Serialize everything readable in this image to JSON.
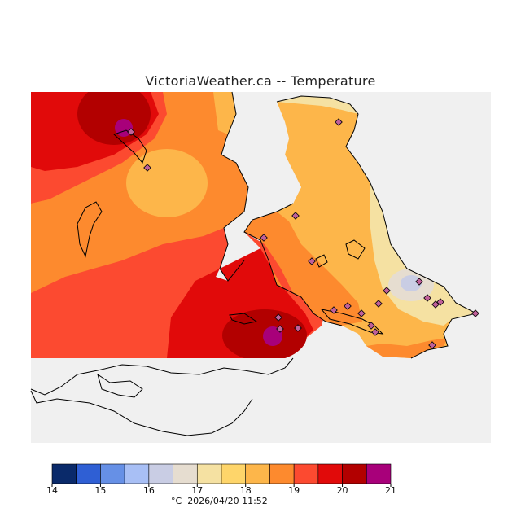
{
  "title": "VictoriaWeather.ca -- Temperature",
  "map": {
    "base_color": "#f0f0f0",
    "coastline_color": "#000000",
    "station_marker_color": "#c0609a"
  },
  "legend": {
    "unit": "°C",
    "timestamp": "2026/04/20 11:52",
    "ticks": [
      "14",
      "15",
      "16",
      "17",
      "18",
      "19",
      "20",
      "21"
    ],
    "colors": [
      "#0a2a6a",
      "#2f5fd4",
      "#6690e6",
      "#a8bff5",
      "#c9cde4",
      "#e6ddd0",
      "#f5e1a2",
      "#fed56a",
      "#fdb64a",
      "#fd8a2e",
      "#fc4a30",
      "#e10a0a",
      "#b20000",
      "#a8007a"
    ]
  }
}
